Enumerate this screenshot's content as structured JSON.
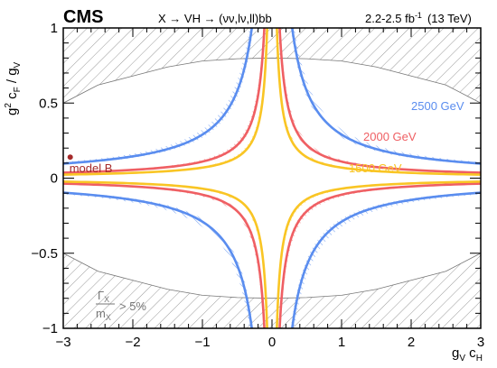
{
  "header": {
    "experiment": "CMS",
    "process": "X → VH → (νν,lν,ll)bb",
    "lumi": "2.2-2.5 fb",
    "lumi_sup": "-1",
    "energy": "(13 TeV)"
  },
  "width_label": {
    "num": "Γ",
    "num_sub": "X",
    "den": "m",
    "den_sub": "X",
    "rhs": "> 5%"
  },
  "chart_data": {
    "type": "line",
    "title": "",
    "xlabel": "g",
    "xlabel_sub1": "V",
    "xlabel_mid": " c",
    "xlabel_sub2": "H",
    "ylabel": "g",
    "ylabel_sup": "2",
    "ylabel_mid": " c",
    "ylabel_sub1": "F",
    "ylabel_div": " / g",
    "ylabel_sub2": "V",
    "xlim": [
      -3,
      3
    ],
    "ylim": [
      -1,
      1
    ],
    "xticks": [
      -3,
      -2,
      -1,
      0,
      1,
      2,
      3
    ],
    "xtick_labels": [
      "−3",
      "−2",
      "−1",
      "0",
      "1",
      "2",
      "3"
    ],
    "yticks": [
      -1,
      -0.5,
      0,
      0.5,
      1
    ],
    "ytick_labels": [
      "−1",
      "−0.5",
      "0",
      "0.5",
      "1"
    ],
    "grid": false,
    "series": [
      {
        "name": "2500 GeV",
        "color": "#5a8def",
        "k": 0.29
      },
      {
        "name": "2000 GeV",
        "color": "#ef5f63",
        "k": 0.11
      },
      {
        "name": "1500 GeV",
        "color": "#f9c524",
        "k": 0.07
      }
    ],
    "benchmark": {
      "name": "model B",
      "x": -2.9,
      "y": 0.14,
      "color": "#a52a2a"
    },
    "excluded_region_boundary": {
      "x": [
        -3.0,
        -2.5,
        -2.0,
        -1.5,
        -1.0,
        -0.5,
        0.0,
        0.5,
        1.0,
        1.5,
        2.0,
        2.5,
        3.0
      ],
      "y": [
        0.5,
        0.62,
        0.68,
        0.74,
        0.78,
        0.795,
        0.8,
        0.795,
        0.78,
        0.74,
        0.68,
        0.62,
        0.5
      ]
    }
  }
}
